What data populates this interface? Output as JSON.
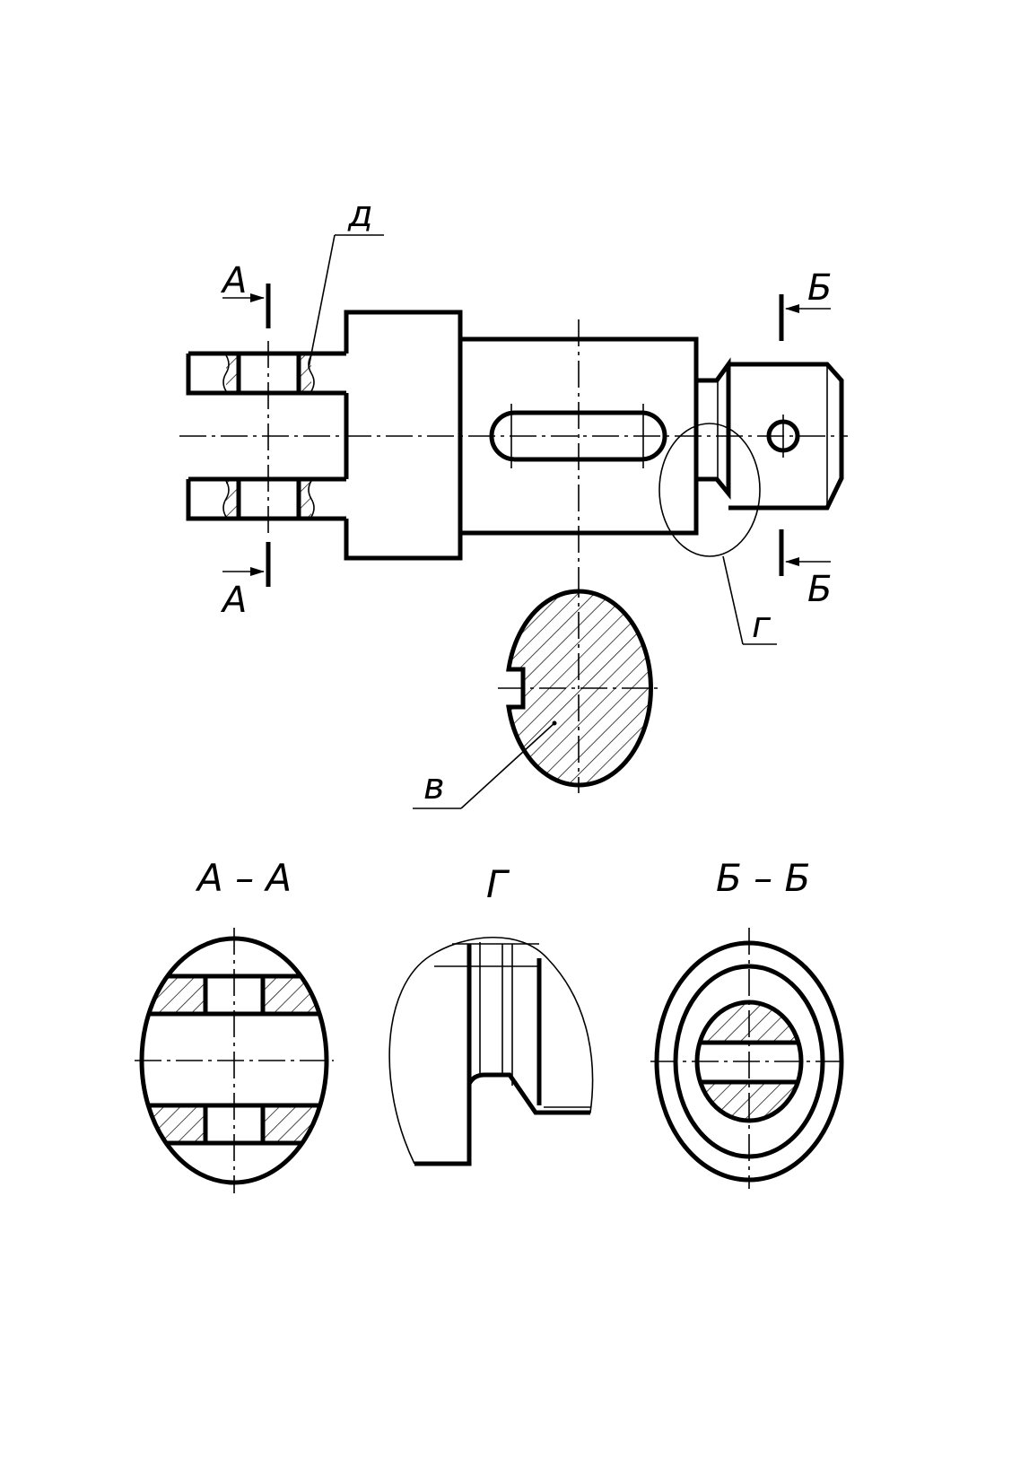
{
  "labels": {
    "cut_a_top": "А",
    "cut_a_bottom": "А",
    "cut_b_top": "Б",
    "cut_b_bottom": "Б",
    "leader_d": "д",
    "leader_g": "г",
    "leader_v": "в"
  },
  "titles": {
    "section_aa": "А – А",
    "detail_g": "Г",
    "section_bb": "Б – Б"
  },
  "colors": {
    "line": "#000000",
    "background": "#ffffff"
  }
}
